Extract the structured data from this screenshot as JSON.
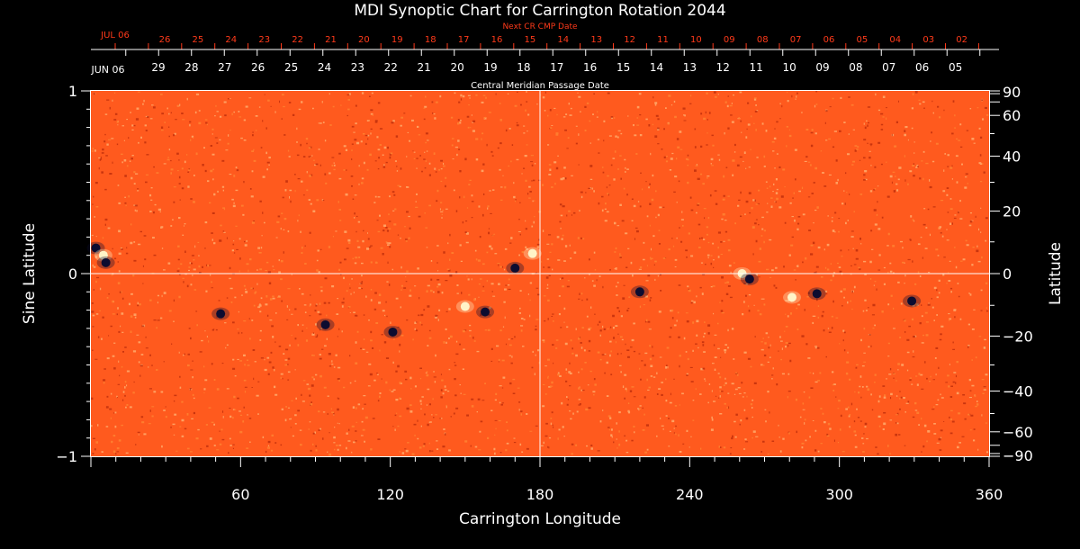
{
  "chart_data": {
    "type": "heatmap",
    "title": "MDI Synoptic Chart for Carrington Rotation 2044",
    "xlabel": "Carrington Longitude",
    "ylabel_left": "Sine Latitude",
    "ylabel_right": "Latitude",
    "xlim": [
      0,
      360
    ],
    "ylim_sine": [
      -1,
      1
    ],
    "x_ticks": [
      "60",
      "120",
      "180",
      "240",
      "300",
      "360"
    ],
    "y_ticks_left": [
      "1",
      "0",
      "−1"
    ],
    "y_ticks_right": [
      "90",
      "60",
      "40",
      "20",
      "0",
      "−20",
      "−40",
      "−60",
      "−90"
    ],
    "grid_lines": {
      "longitude": 180,
      "sine_latitude": 0
    },
    "top_axis_cmp": {
      "start_label": "JUN 06",
      "dates": [
        "29",
        "28",
        "27",
        "26",
        "25",
        "24",
        "23",
        "22",
        "21",
        "20",
        "19",
        "18",
        "17",
        "16",
        "15",
        "14",
        "13",
        "12",
        "11",
        "10",
        "09",
        "08",
        "07",
        "06",
        "05"
      ],
      "title": "Central Meridian Passage Date"
    },
    "top_axis_next_cmp": {
      "start_label": "JUL 06",
      "dates": [
        "26",
        "25",
        "24",
        "23",
        "22",
        "21",
        "20",
        "19",
        "18",
        "17",
        "16",
        "15",
        "14",
        "13",
        "12",
        "11",
        "10",
        "09",
        "08",
        "07",
        "06",
        "05",
        "04",
        "03",
        "02"
      ],
      "title": "Next CR CMP Date"
    },
    "colors": {
      "background": "#ff5a1e",
      "positive": "#fff4c8",
      "negative": "#0c0c30",
      "axis": "#ffffff",
      "next_axis": "#ff3a1a"
    },
    "active_regions": [
      {
        "lon": 2,
        "sinlat": 0.14,
        "polarity": "negative"
      },
      {
        "lon": 5,
        "sinlat": 0.1,
        "polarity": "positive"
      },
      {
        "lon": 6,
        "sinlat": 0.06,
        "polarity": "negative"
      },
      {
        "lon": 52,
        "sinlat": -0.22,
        "polarity": "negative"
      },
      {
        "lon": 94,
        "sinlat": -0.28,
        "polarity": "negative"
      },
      {
        "lon": 121,
        "sinlat": -0.32,
        "polarity": "negative"
      },
      {
        "lon": 150,
        "sinlat": -0.18,
        "polarity": "positive"
      },
      {
        "lon": 158,
        "sinlat": -0.21,
        "polarity": "negative"
      },
      {
        "lon": 170,
        "sinlat": 0.03,
        "polarity": "negative"
      },
      {
        "lon": 177,
        "sinlat": 0.11,
        "polarity": "positive"
      },
      {
        "lon": 220,
        "sinlat": -0.1,
        "polarity": "negative"
      },
      {
        "lon": 261,
        "sinlat": 0.0,
        "polarity": "positive"
      },
      {
        "lon": 264,
        "sinlat": -0.03,
        "polarity": "negative"
      },
      {
        "lon": 281,
        "sinlat": -0.13,
        "polarity": "positive"
      },
      {
        "lon": 291,
        "sinlat": -0.11,
        "polarity": "negative"
      },
      {
        "lon": 329,
        "sinlat": -0.15,
        "polarity": "negative"
      }
    ]
  }
}
